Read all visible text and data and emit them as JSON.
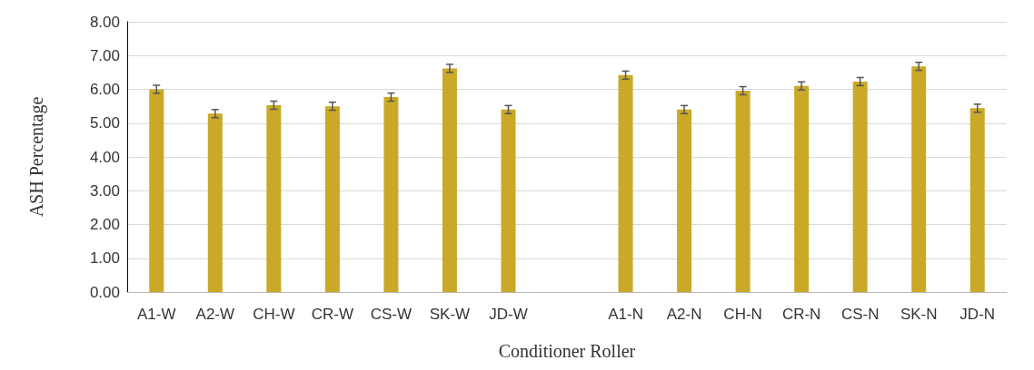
{
  "chart_data": {
    "type": "bar",
    "xlabel": "Conditioner Roller",
    "ylabel": "ASH Percentage",
    "categories": [
      "A1-W",
      "A2-W",
      "CH-W",
      "CR-W",
      "CS-W",
      "SK-W",
      "JD-W",
      null,
      "A1-N",
      "A2-N",
      "CH-N",
      "CR-N",
      "CS-N",
      "SK-N",
      "JD-N"
    ],
    "values": [
      6.0,
      5.28,
      5.53,
      5.5,
      5.77,
      6.62,
      5.4,
      null,
      6.42,
      5.4,
      5.96,
      6.1,
      6.23,
      6.68,
      5.44
    ],
    "errors": [
      0.12,
      0.12,
      0.12,
      0.12,
      0.12,
      0.12,
      0.12,
      null,
      0.12,
      0.12,
      0.12,
      0.12,
      0.12,
      0.12,
      0.12
    ],
    "color": "#c9a927",
    "ylim": [
      0,
      8
    ],
    "yticks": [
      {
        "value": 0,
        "label": "0.00"
      },
      {
        "value": 1,
        "label": "1.00"
      },
      {
        "value": 2,
        "label": "2.00"
      },
      {
        "value": 3,
        "label": "3.00"
      },
      {
        "value": 4,
        "label": "4.00"
      },
      {
        "value": 5,
        "label": "5.00"
      },
      {
        "value": 6,
        "label": "6.00"
      },
      {
        "value": 7,
        "label": "7.00"
      },
      {
        "value": 8,
        "label": "8.00"
      }
    ],
    "grid": "y"
  }
}
